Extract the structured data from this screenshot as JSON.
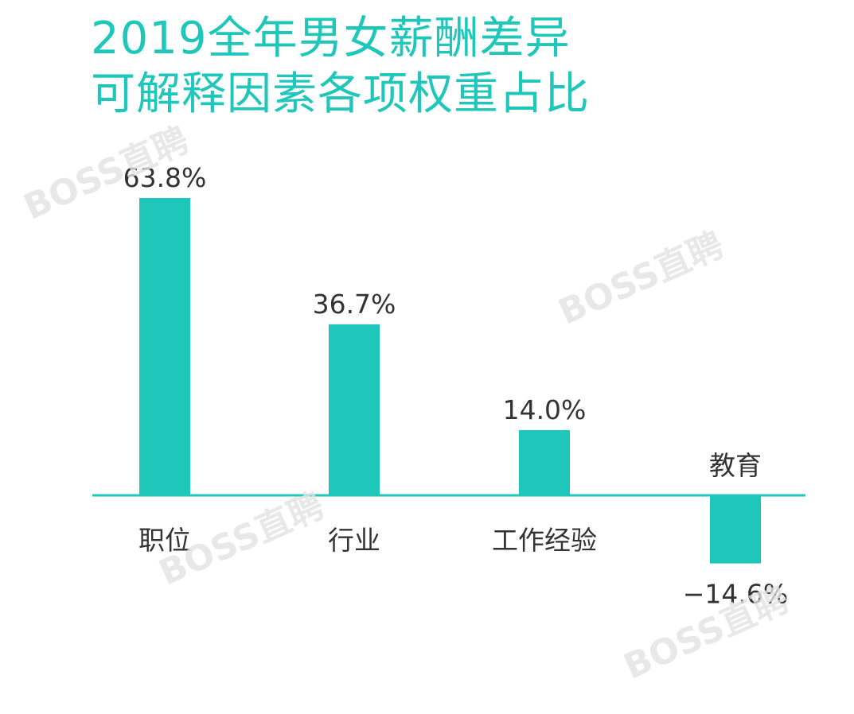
{
  "title_lines": [
    "2019全年男女薪酬差异",
    "可解释因素各项权重占比"
  ],
  "watermark": "BOSS直聘",
  "colors": {
    "accent": "#1ec7b9",
    "text": "#333333",
    "watermark": "#e3e3e3"
  },
  "chart_data": {
    "type": "bar",
    "title": "2019全年男女薪酬差异 可解释因素各项权重占比",
    "categories": [
      "职位",
      "行业",
      "工作经验",
      "教育"
    ],
    "values": [
      63.8,
      36.7,
      14.0,
      -14.6
    ],
    "value_labels": [
      "63.8%",
      "36.7%",
      "14.0%",
      "−14.6%"
    ],
    "unit": "%",
    "xlabel": "",
    "ylabel": "",
    "grid": false,
    "legend": "none"
  }
}
